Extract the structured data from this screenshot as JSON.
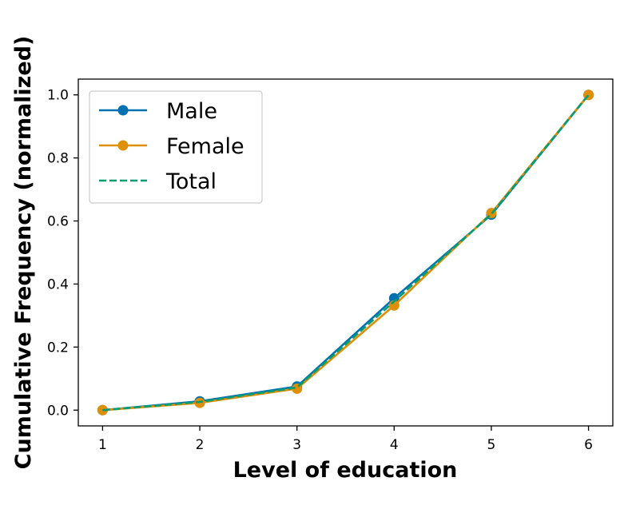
{
  "chart_data": {
    "type": "line",
    "xlabel": "Level of education",
    "ylabel": "Cumulative Frequency (normalized)",
    "x": [
      1,
      2,
      3,
      4,
      5,
      6
    ],
    "xlim": [
      0.75,
      6.25
    ],
    "ylim": [
      -0.05,
      1.05
    ],
    "xticks": [
      "1",
      "2",
      "3",
      "4",
      "5",
      "6"
    ],
    "yticks": [
      "0.0",
      "0.2",
      "0.4",
      "0.6",
      "0.8",
      "1.0"
    ],
    "grid": false,
    "legend_position": "top-left",
    "series": [
      {
        "name": "Male",
        "values": [
          0.0,
          0.028,
          0.075,
          0.355,
          0.62,
          1.0
        ],
        "color": "#0072b2",
        "style": "solid",
        "marker": "circle"
      },
      {
        "name": "Female",
        "values": [
          0.0,
          0.023,
          0.068,
          0.332,
          0.625,
          1.0
        ],
        "color": "#de8f05",
        "style": "solid",
        "marker": "circle"
      },
      {
        "name": "Total",
        "values": [
          0.0,
          0.026,
          0.072,
          0.345,
          0.622,
          1.0
        ],
        "color": "#029e73",
        "style": "dashed",
        "marker": "none"
      }
    ]
  }
}
